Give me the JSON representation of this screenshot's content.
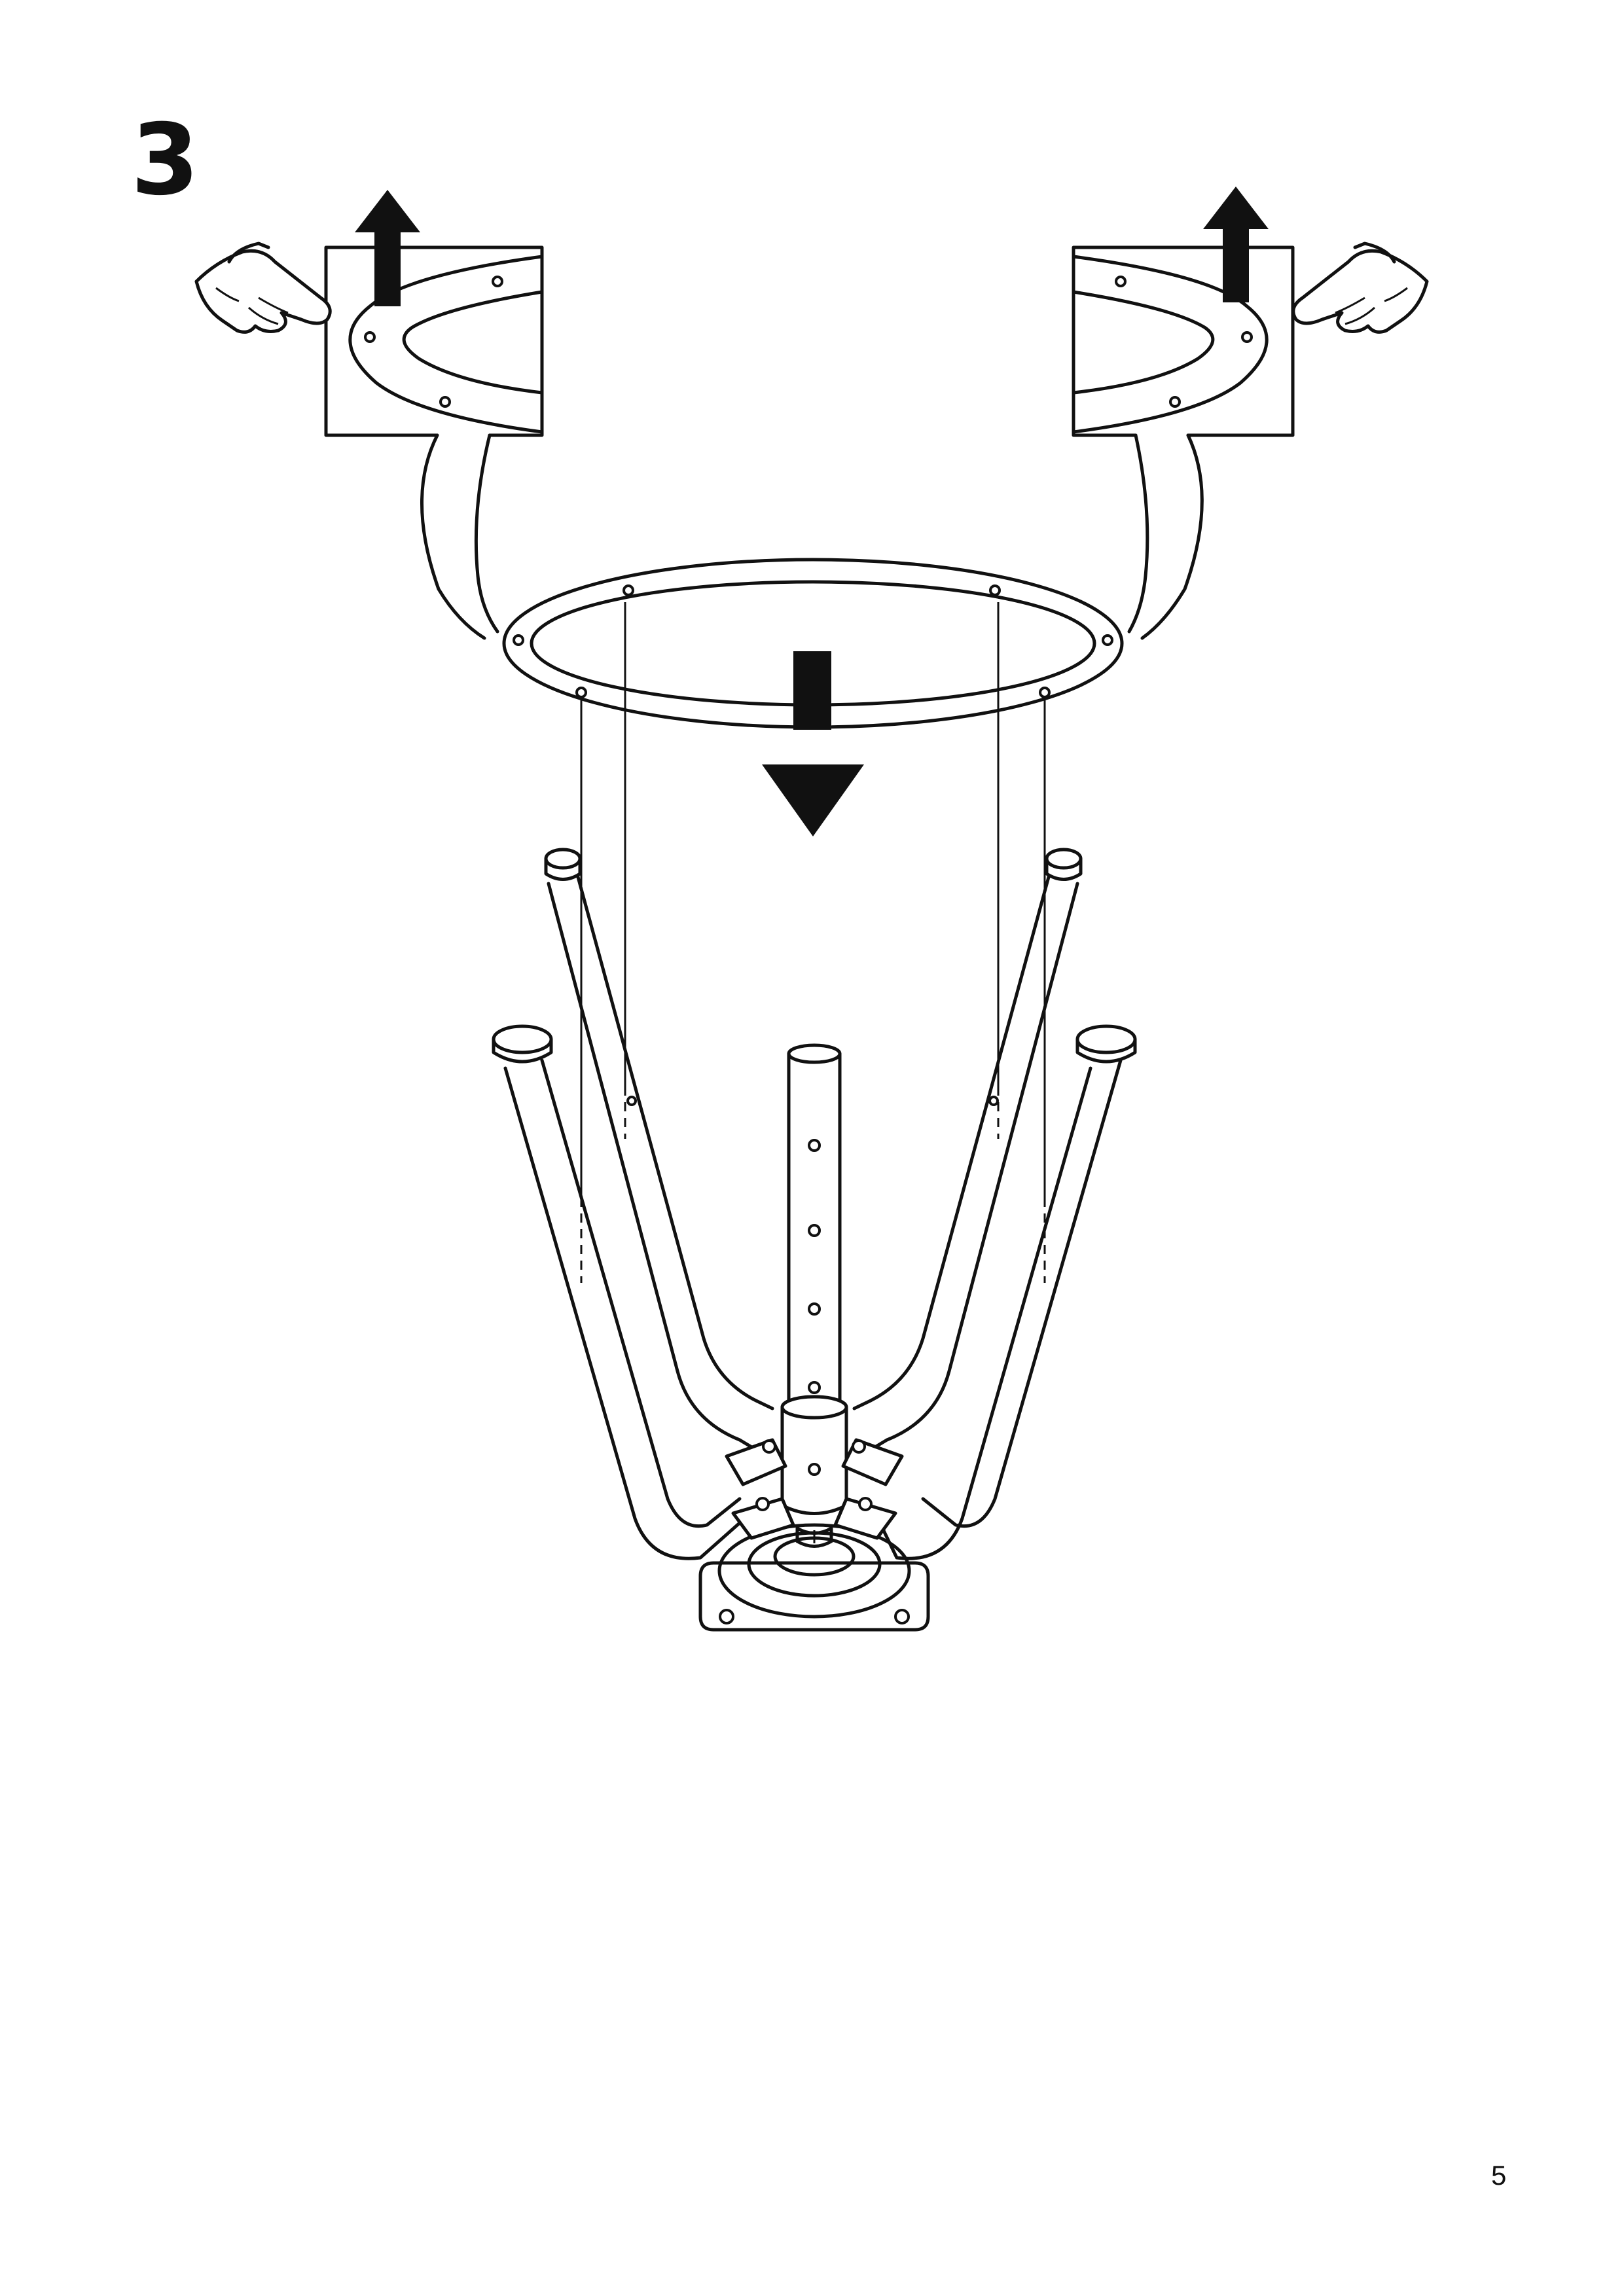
{
  "step": {
    "number": "3"
  },
  "footer": {
    "page_number": "5"
  },
  "colors": {
    "ink": "#111111",
    "paper": "#ffffff"
  },
  "icons": [
    "pointing-hand-icon",
    "arrow-up-icon",
    "arrow-down-icon"
  ]
}
